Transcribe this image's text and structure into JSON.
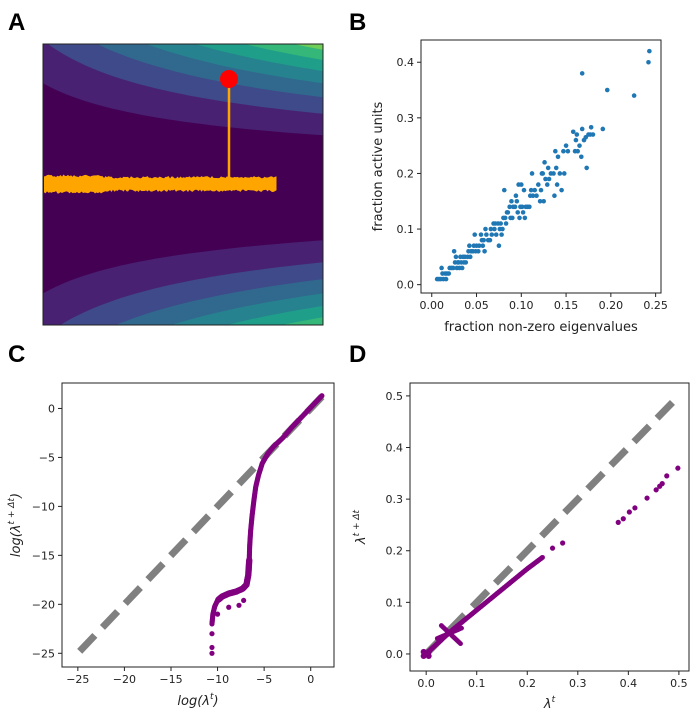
{
  "panel_letters": [
    "A",
    "B",
    "C",
    "D"
  ],
  "colors": {
    "viridis": [
      "#440154",
      "#482173",
      "#3e4a89",
      "#31688e",
      "#26828e",
      "#1f9e89",
      "#35b779",
      "#6ece58",
      "#c2df23",
      "#fde725"
    ],
    "trajectory": "#ffa500",
    "start_point": "#ff0000",
    "scatter_blue": "#1f77b4",
    "purple": "#800080",
    "identity_line": "#808080"
  },
  "chart_data": [
    {
      "panel": "A",
      "type": "heatmap",
      "title": "",
      "description_levels": 9,
      "elements": [
        "contour landscape",
        "noisy trajectory",
        "start point",
        "drop line"
      ]
    },
    {
      "panel": "B",
      "type": "scatter",
      "xlabel": "fraction non-zero eigenvalues",
      "ylabel": "fraction active units",
      "xlim": [
        -0.012,
        0.256
      ],
      "ylim": [
        -0.015,
        0.44
      ],
      "xticks": [
        "0.00",
        "0.05",
        "0.10",
        "0.15",
        "0.20",
        "0.25"
      ],
      "yticks": [
        "0.0",
        "0.1",
        "0.2",
        "0.3",
        "0.4"
      ],
      "points": [
        [
          0.006,
          0.01
        ],
        [
          0.008,
          0.01
        ],
        [
          0.01,
          0.01
        ],
        [
          0.012,
          0.02
        ],
        [
          0.011,
          0.03
        ],
        [
          0.013,
          0.01
        ],
        [
          0.015,
          0.02
        ],
        [
          0.016,
          0.01
        ],
        [
          0.017,
          0.02
        ],
        [
          0.019,
          0.02
        ],
        [
          0.02,
          0.03
        ],
        [
          0.022,
          0.03
        ],
        [
          0.024,
          0.03
        ],
        [
          0.025,
          0.06
        ],
        [
          0.026,
          0.04
        ],
        [
          0.027,
          0.05
        ],
        [
          0.028,
          0.03
        ],
        [
          0.029,
          0.04
        ],
        [
          0.03,
          0.04
        ],
        [
          0.031,
          0.03
        ],
        [
          0.032,
          0.05
        ],
        [
          0.033,
          0.04
        ],
        [
          0.034,
          0.03
        ],
        [
          0.035,
          0.05
        ],
        [
          0.036,
          0.04
        ],
        [
          0.037,
          0.05
        ],
        [
          0.038,
          0.04
        ],
        [
          0.04,
          0.05
        ],
        [
          0.041,
          0.06
        ],
        [
          0.042,
          0.07
        ],
        [
          0.043,
          0.05
        ],
        [
          0.044,
          0.06
        ],
        [
          0.046,
          0.06
        ],
        [
          0.047,
          0.07
        ],
        [
          0.048,
          0.09
        ],
        [
          0.049,
          0.06
        ],
        [
          0.05,
          0.07
        ],
        [
          0.052,
          0.06
        ],
        [
          0.053,
          0.07
        ],
        [
          0.055,
          0.09
        ],
        [
          0.056,
          0.08
        ],
        [
          0.057,
          0.07
        ],
        [
          0.058,
          0.08
        ],
        [
          0.059,
          0.06
        ],
        [
          0.06,
          0.1
        ],
        [
          0.061,
          0.09
        ],
        [
          0.063,
          0.08
        ],
        [
          0.065,
          0.08
        ],
        [
          0.066,
          0.1
        ],
        [
          0.067,
          0.09
        ],
        [
          0.069,
          0.11
        ],
        [
          0.07,
          0.1
        ],
        [
          0.071,
          0.11
        ],
        [
          0.072,
          0.09
        ],
        [
          0.074,
          0.11
        ],
        [
          0.075,
          0.07
        ],
        [
          0.076,
          0.1
        ],
        [
          0.077,
          0.11
        ],
        [
          0.078,
          0.09
        ],
        [
          0.079,
          0.1
        ],
        [
          0.08,
          0.12
        ],
        [
          0.081,
          0.17
        ],
        [
          0.082,
          0.12
        ],
        [
          0.083,
          0.11
        ],
        [
          0.084,
          0.13
        ],
        [
          0.085,
          0.13
        ],
        [
          0.087,
          0.14
        ],
        [
          0.088,
          0.12
        ],
        [
          0.089,
          0.15
        ],
        [
          0.09,
          0.12
        ],
        [
          0.091,
          0.14
        ],
        [
          0.093,
          0.14
        ],
        [
          0.094,
          0.16
        ],
        [
          0.095,
          0.15
        ],
        [
          0.096,
          0.13
        ],
        [
          0.097,
          0.18
        ],
        [
          0.098,
          0.12
        ],
        [
          0.099,
          0.14
        ],
        [
          0.1,
          0.18
        ],
        [
          0.101,
          0.14
        ],
        [
          0.102,
          0.13
        ],
        [
          0.103,
          0.17
        ],
        [
          0.104,
          0.12
        ],
        [
          0.105,
          0.14
        ],
        [
          0.107,
          0.14
        ],
        [
          0.109,
          0.14
        ],
        [
          0.11,
          0.16
        ],
        [
          0.111,
          0.17
        ],
        [
          0.112,
          0.2
        ],
        [
          0.113,
          0.16
        ],
        [
          0.115,
          0.17
        ],
        [
          0.117,
          0.16
        ],
        [
          0.119,
          0.18
        ],
        [
          0.121,
          0.15
        ],
        [
          0.122,
          0.17
        ],
        [
          0.123,
          0.2
        ],
        [
          0.124,
          0.2
        ],
        [
          0.125,
          0.15
        ],
        [
          0.126,
          0.22
        ],
        [
          0.127,
          0.19
        ],
        [
          0.129,
          0.18
        ],
        [
          0.13,
          0.21
        ],
        [
          0.131,
          0.19
        ],
        [
          0.133,
          0.2
        ],
        [
          0.136,
          0.2
        ],
        [
          0.137,
          0.16
        ],
        [
          0.138,
          0.24
        ],
        [
          0.139,
          0.21
        ],
        [
          0.14,
          0.18
        ],
        [
          0.141,
          0.23
        ],
        [
          0.143,
          0.2
        ],
        [
          0.145,
          0.17
        ],
        [
          0.147,
          0.24
        ],
        [
          0.148,
          0.2
        ],
        [
          0.15,
          0.25
        ],
        [
          0.152,
          0.24
        ],
        [
          0.158,
          0.275
        ],
        [
          0.16,
          0.24
        ],
        [
          0.161,
          0.26
        ],
        [
          0.162,
          0.27
        ],
        [
          0.163,
          0.24
        ],
        [
          0.165,
          0.25
        ],
        [
          0.167,
          0.23
        ],
        [
          0.168,
          0.28
        ],
        [
          0.17,
          0.26
        ],
        [
          0.172,
          0.265
        ],
        [
          0.173,
          0.21
        ],
        [
          0.175,
          0.27
        ],
        [
          0.177,
          0.27
        ],
        [
          0.178,
          0.283
        ],
        [
          0.18,
          0.27
        ],
        [
          0.191,
          0.28
        ],
        [
          0.168,
          0.38
        ],
        [
          0.196,
          0.35
        ],
        [
          0.226,
          0.34
        ],
        [
          0.242,
          0.4
        ],
        [
          0.243,
          0.42
        ]
      ]
    },
    {
      "panel": "C",
      "type": "scatter",
      "xlabel_parts": [
        "log(λ",
        "t",
        ")"
      ],
      "ylabel_parts": [
        "log(λ",
        "t + Δt",
        ")"
      ],
      "xlim": [
        -26.7,
        2.5
      ],
      "ylim": [
        -26.4,
        2.6
      ],
      "xticks": [
        "−25",
        "−20",
        "−15",
        "−10",
        "−5",
        "0"
      ],
      "yticks": [
        "0",
        "−5",
        "−10",
        "−15",
        "−20",
        "−25"
      ],
      "xtick_values": [
        -25,
        -20,
        -15,
        -10,
        -5,
        0
      ],
      "ytick_values": [
        0,
        -5,
        -10,
        -15,
        -20,
        -25
      ],
      "identity_line": [
        [
          -24.8,
          -24.8
        ],
        [
          1.2,
          1.2
        ]
      ],
      "curve": [
        [
          1.2,
          1.3
        ],
        [
          0,
          0.1
        ],
        [
          -1,
          -0.9
        ],
        [
          -2,
          -1.9
        ],
        [
          -3,
          -3
        ],
        [
          -4,
          -3.9
        ],
        [
          -4.6,
          -4.6
        ],
        [
          -5.2,
          -5.6
        ],
        [
          -5.6,
          -6.8
        ],
        [
          -5.9,
          -8
        ],
        [
          -6.1,
          -9.4
        ],
        [
          -6.3,
          -11
        ],
        [
          -6.45,
          -12.5
        ],
        [
          -6.55,
          -14
        ],
        [
          -6.6,
          -15.5
        ],
        [
          -6.7,
          -17
        ],
        [
          -6.9,
          -18
        ],
        [
          -7.3,
          -18.4
        ],
        [
          -8,
          -18.7
        ],
        [
          -8.8,
          -18.9
        ],
        [
          -9.5,
          -19.2
        ],
        [
          -10,
          -19.6
        ],
        [
          -10.3,
          -20.2
        ],
        [
          -10.5,
          -21
        ],
        [
          -10.6,
          -22
        ]
      ],
      "outliers": [
        [
          -10.6,
          -23
        ],
        [
          -10.6,
          -24.4
        ],
        [
          -10.6,
          -25
        ],
        [
          -8.8,
          -20.3
        ],
        [
          -7.7,
          -20.1
        ],
        [
          -7.2,
          -19.6
        ],
        [
          -10,
          -21
        ]
      ]
    },
    {
      "panel": "D",
      "type": "scatter",
      "xlabel_parts": [
        "λ",
        "t",
        ""
      ],
      "ylabel_parts": [
        "λ",
        "t + Δt",
        ""
      ],
      "xlim": [
        -0.032,
        0.52
      ],
      "ylim": [
        -0.033,
        0.525
      ],
      "xticks": [
        "0.0",
        "0.1",
        "0.2",
        "0.3",
        "0.4",
        "0.5"
      ],
      "yticks": [
        "0.0",
        "0.1",
        "0.2",
        "0.3",
        "0.4",
        "0.5"
      ],
      "xtick_values": [
        0,
        0.1,
        0.2,
        0.3,
        0.4,
        0.5
      ],
      "ytick_values": [
        0,
        0.1,
        0.2,
        0.3,
        0.4,
        0.5
      ],
      "identity_line": [
        [
          0,
          0
        ],
        [
          0.5,
          0.5
        ]
      ],
      "curve": [
        [
          0.005,
          0.005
        ],
        [
          0.05,
          0.045
        ],
        [
          0.1,
          0.085
        ],
        [
          0.15,
          0.125
        ],
        [
          0.2,
          0.165
        ],
        [
          0.23,
          0.187
        ]
      ],
      "cross": [
        [
          [
            0.03,
            0.055
          ],
          [
            0.068,
            0.02
          ]
        ],
        [
          [
            0.022,
            0.03
          ],
          [
            0.07,
            0.05
          ]
        ]
      ],
      "origin_cluster": [
        [
          -0.005,
          -0.004
        ],
        [
          0.005,
          0.004
        ],
        [
          -0.005,
          0.004
        ],
        [
          0.005,
          -0.004
        ],
        [
          0,
          0
        ]
      ],
      "points": [
        [
          0.25,
          0.205
        ],
        [
          0.27,
          0.215
        ],
        [
          0.38,
          0.255
        ],
        [
          0.39,
          0.262
        ],
        [
          0.402,
          0.275
        ],
        [
          0.413,
          0.283
        ],
        [
          0.437,
          0.302
        ],
        [
          0.455,
          0.318
        ],
        [
          0.462,
          0.325
        ],
        [
          0.467,
          0.33
        ],
        [
          0.476,
          0.345
        ],
        [
          0.498,
          0.36
        ]
      ]
    }
  ]
}
